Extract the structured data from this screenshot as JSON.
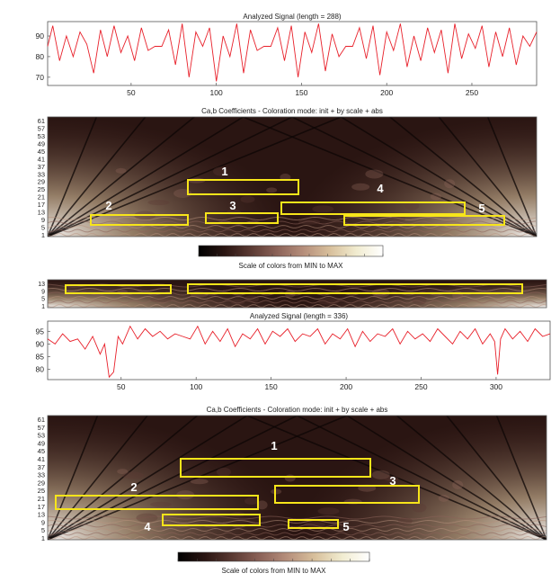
{
  "chart_data": [
    {
      "type": "line",
      "title": "Analyzed Signal (length = 288)",
      "xlim": [
        1,
        288
      ],
      "ylim": [
        66,
        97
      ],
      "x_ticks": [
        50,
        100,
        150,
        200,
        250
      ],
      "y_ticks": [
        70,
        80,
        90
      ],
      "grid": false,
      "color": "#e8202a",
      "series": [
        {
          "x": [
            1,
            4,
            8,
            12,
            16,
            20,
            24,
            28,
            32,
            36,
            40,
            44,
            48,
            52,
            56,
            60,
            64,
            68,
            72,
            76,
            80,
            84,
            88,
            92,
            96,
            100,
            104,
            108,
            112,
            116,
            120,
            124,
            128,
            132,
            136,
            140,
            144,
            148,
            152,
            156,
            160,
            164,
            168,
            172,
            176,
            180,
            184,
            188,
            192,
            196,
            200,
            204,
            208,
            212,
            216,
            220,
            224,
            228,
            232,
            236,
            240,
            244,
            248,
            252,
            256,
            260,
            264,
            268,
            272,
            276,
            280,
            284,
            288
          ],
          "y": [
            85,
            95,
            78,
            90,
            80,
            92,
            86,
            72,
            93,
            80,
            95,
            82,
            90,
            78,
            94,
            83,
            85,
            85,
            93,
            76,
            96,
            70,
            92,
            85,
            94,
            68,
            90,
            80,
            96,
            72,
            93,
            83,
            85,
            85,
            94,
            78,
            95,
            70,
            92,
            82,
            96,
            73,
            91,
            80,
            85,
            85,
            94,
            79,
            95,
            71,
            92,
            83,
            96,
            75,
            90,
            78,
            94,
            82,
            93,
            72,
            96,
            79,
            91,
            84,
            95,
            75,
            92,
            80,
            94,
            76,
            90,
            85,
            92
          ]
        }
      ]
    },
    {
      "type": "heatmap",
      "title": "Ca,b Coefficients - Coloration mode: init + by scale + abs",
      "y_ticks": [
        "1",
        "5",
        "9",
        "13",
        "17",
        "21",
        "25",
        "29",
        "33",
        "37",
        "41",
        "45",
        "49",
        "53",
        "57",
        "61"
      ],
      "colorbar_label": "Scale of colors from MIN to MAX",
      "annotations": [
        "1",
        "2",
        "3",
        "4",
        "5"
      ]
    },
    {
      "type": "heatmap",
      "y_ticks": [
        "1",
        "5",
        "9",
        "13"
      ]
    },
    {
      "type": "line",
      "title": "Analyzed Signal (length = 336)",
      "xlim": [
        1,
        336
      ],
      "ylim": [
        76,
        99
      ],
      "x_ticks": [
        50,
        100,
        150,
        200,
        250,
        300
      ],
      "y_ticks": [
        80,
        85,
        90,
        95
      ],
      "grid": false,
      "color": "#e8202a",
      "series": [
        {
          "x": [
            1,
            6,
            11,
            16,
            21,
            26,
            31,
            36,
            39,
            42,
            45,
            48,
            51,
            56,
            61,
            66,
            71,
            76,
            81,
            86,
            91,
            96,
            101,
            106,
            111,
            116,
            121,
            126,
            131,
            136,
            141,
            146,
            151,
            156,
            161,
            166,
            171,
            176,
            181,
            186,
            191,
            196,
            201,
            206,
            211,
            216,
            221,
            226,
            231,
            236,
            241,
            246,
            251,
            256,
            261,
            266,
            271,
            276,
            281,
            286,
            291,
            296,
            299,
            301,
            303,
            306,
            311,
            316,
            321,
            326,
            331,
            336
          ],
          "y": [
            92,
            90,
            94,
            91,
            92,
            88,
            93,
            86,
            90,
            77,
            79,
            93,
            90,
            97,
            92,
            96,
            93,
            95,
            92,
            94,
            93,
            92,
            97,
            90,
            95,
            91,
            96,
            89,
            94,
            92,
            96,
            90,
            95,
            93,
            96,
            91,
            94,
            93,
            96,
            90,
            94,
            92,
            96,
            89,
            95,
            91,
            94,
            93,
            96,
            90,
            95,
            92,
            94,
            91,
            96,
            93,
            90,
            95,
            92,
            96,
            90,
            94,
            91,
            78,
            92,
            96,
            92,
            95,
            91,
            96,
            93,
            94
          ]
        }
      ]
    },
    {
      "type": "heatmap",
      "title": "Ca,b Coefficients - Coloration mode: init + by scale + abs",
      "y_ticks": [
        "1",
        "5",
        "9",
        "13",
        "17",
        "21",
        "25",
        "29",
        "33",
        "37",
        "41",
        "45",
        "49",
        "53",
        "57",
        "61"
      ],
      "colorbar_label": "Scale of colors from MIN to MAX",
      "annotations": [
        "1",
        "2",
        "3",
        "4",
        "5"
      ]
    }
  ],
  "colors": {
    "signal": "#e8202a",
    "box": "#f7e51a",
    "label": "#ffffff",
    "colormap": [
      "#000000",
      "#2a1512",
      "#5b3a33",
      "#8c6359",
      "#b68f7c",
      "#d8c09c",
      "#f1ecd0",
      "#ffffff"
    ]
  }
}
